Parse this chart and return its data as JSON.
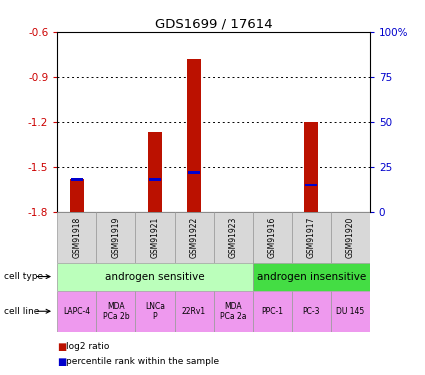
{
  "title": "GDS1699 / 17614",
  "samples": [
    "GSM91918",
    "GSM91919",
    "GSM91921",
    "GSM91922",
    "GSM91923",
    "GSM91916",
    "GSM91917",
    "GSM91920"
  ],
  "log2_ratio": [
    -1.58,
    0,
    -1.27,
    -0.78,
    0,
    0,
    -1.2,
    0
  ],
  "percentile_rank": [
    18,
    0,
    18,
    22,
    0,
    0,
    15,
    0
  ],
  "ylim_left": [
    -1.8,
    -0.6
  ],
  "ylim_right": [
    0,
    100
  ],
  "left_ticks": [
    -1.8,
    -1.5,
    -1.2,
    -0.9,
    -0.6
  ],
  "right_ticks": [
    0,
    25,
    50,
    75,
    100
  ],
  "right_tick_labels": [
    "0",
    "25",
    "50",
    "75",
    "100%"
  ],
  "ytick_color_left": "#cc0000",
  "ytick_color_right": "#0000cc",
  "bar_color_red": "#bb1100",
  "bar_color_blue": "#0000cc",
  "cell_type_sensitive": "androgen sensitive",
  "cell_type_insensitive": "androgen insensitive",
  "cell_type_sensitive_color": "#bbffbb",
  "cell_type_insensitive_color": "#44dd44",
  "cell_line_color": "#ee99ee",
  "cell_lines": [
    "LAPC-4",
    "MDA\nPCa 2b",
    "LNCa\nP",
    "22Rv1",
    "MDA\nPCa 2a",
    "PPC-1",
    "PC-3",
    "DU 145"
  ],
  "n_sensitive": 5,
  "n_insensitive": 3,
  "bar_width": 0.35,
  "legend_log2": "log2 ratio",
  "legend_pct": "percentile rank within the sample",
  "cell_type_label": "cell type",
  "cell_line_label": "cell line",
  "sample_box_color": "#d8d8d8"
}
